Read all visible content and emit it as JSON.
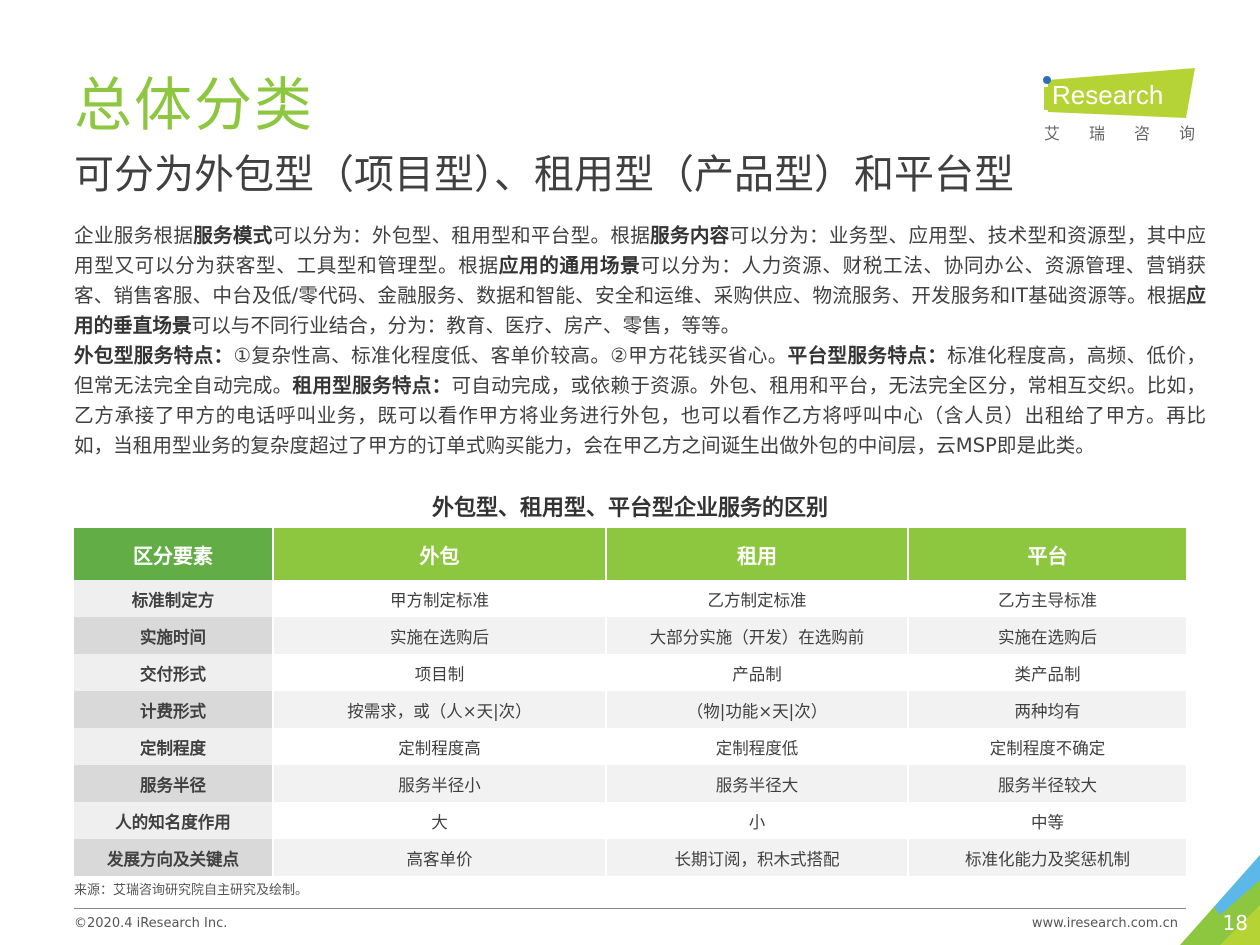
{
  "title": "总体分类",
  "subtitle": "可分为外包型（项目型）、租用型（产品型）和平台型",
  "logo": {
    "text": "iResearch",
    "cn": "艾瑞咨询",
    "accent": "#B5D334",
    "dot": "#2C6FB7"
  },
  "paragraphs": [
    [
      {
        "t": "企业服务根据"
      },
      {
        "t": "服务模式",
        "b": true
      },
      {
        "t": "可以分为：外包型、租用型和平台型。根据"
      },
      {
        "t": "服务内容",
        "b": true
      },
      {
        "t": "可以分为：业务型、应用型、技术型和资源型，其中应用型又可以分为获客型、工具型和管理型。根据"
      },
      {
        "t": "应用的通用场景",
        "b": true
      },
      {
        "t": "可以分为：人力资源、财税工法、协同办公、资源管理、营销获客、销售客服、中台及低/零代码、金融服务、数据和智能、安全和运维、采购供应、物流服务、开发服务和IT基础资源等。根据"
      },
      {
        "t": "应用的垂直场景",
        "b": true
      },
      {
        "t": "可以与不同行业结合，分为：教育、医疗、房产、零售，等等。"
      }
    ],
    [
      {
        "t": "外包型服务特点：",
        "b": true
      },
      {
        "t": "①复杂性高、标准化程度低、客单价较高。②甲方花钱买省心。"
      },
      {
        "t": "平台型服务特点：",
        "b": true
      },
      {
        "t": "标准化程度高，高频、低价，但常无法完全自动完成。"
      },
      {
        "t": "租用型服务特点：",
        "b": true
      },
      {
        "t": "可自动完成，或依赖于资源。外包、租用和平台，无法完全区分，常相互交织。比如，乙方承接了甲方的电话呼叫业务，既可以看作甲方将业务进行外包，也可以看作乙方将呼叫中心（含人员）出租给了甲方。再比如，当租用型业务的复杂度超过了甲方的订单式购买能力，会在甲乙方之间诞生出做外包的中间层，云MSP即是此类。"
      }
    ]
  ],
  "table": {
    "title": "外包型、租用型、平台型企业服务的区别",
    "headers": [
      "区分要素",
      "外包",
      "租用",
      "平台"
    ],
    "rows": [
      [
        "标准制定方",
        "甲方制定标准",
        "乙方制定标准",
        "乙方主导标准"
      ],
      [
        "实施时间",
        "实施在选购后",
        "大部分实施（开发）在选购前",
        "实施在选购后"
      ],
      [
        "交付形式",
        "项目制",
        "产品制",
        "类产品制"
      ],
      [
        "计费形式",
        "按需求，或（人×天|次）",
        "（物|功能×天|次）",
        "两种均有"
      ],
      [
        "定制程度",
        "定制程度高",
        "定制程度低",
        "定制程度不确定"
      ],
      [
        "服务半径",
        "服务半径小",
        "服务半径大",
        "服务半径较大"
      ],
      [
        "人的知名度作用",
        "大",
        "小",
        "中等"
      ],
      [
        "发展方向及关键点",
        "高客单价",
        "长期订阅，积木式搭配",
        "标准化能力及奖惩机制"
      ]
    ]
  },
  "source": "来源：艾瑞咨询研究院自主研究及绘制。",
  "footer": {
    "copyright": "©2020.4 iResearch Inc.",
    "website": "www.iresearch.com.cn",
    "page": "18"
  },
  "colors": {
    "green": "#8DC63F",
    "dark_green": "#62AD45",
    "blue": "#5BB8E8"
  }
}
